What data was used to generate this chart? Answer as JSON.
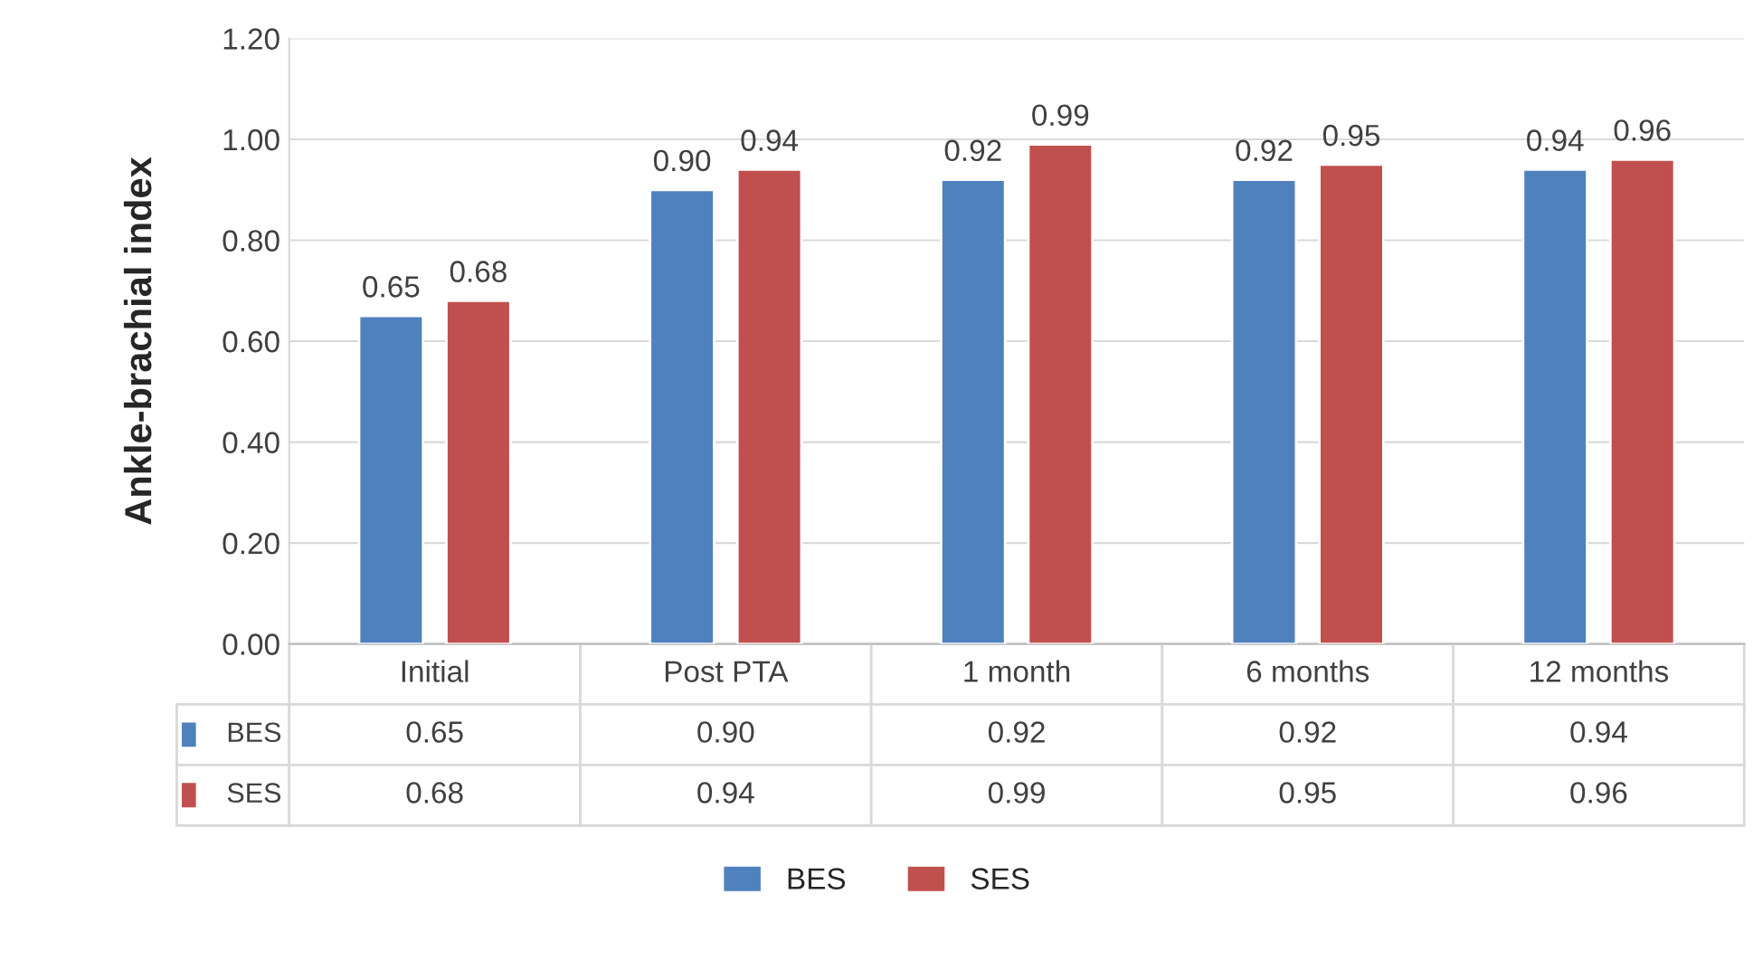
{
  "chart_data": {
    "type": "bar",
    "ylabel": "Ankle-brachial index",
    "categories": [
      "Initial",
      "Post PTA",
      "1 month",
      "6 months",
      "12 months"
    ],
    "series": [
      {
        "name": "BES",
        "color": "#4f81bd",
        "values": [
          0.65,
          0.9,
          0.92,
          0.92,
          0.94
        ],
        "value_labels": [
          "0.65",
          "0.90",
          "0.92",
          "0.92",
          "0.94"
        ]
      },
      {
        "name": "SES",
        "color": "#c0504d",
        "values": [
          0.68,
          0.94,
          0.99,
          0.95,
          0.96
        ],
        "value_labels": [
          "0.68",
          "0.94",
          "0.99",
          "0.95",
          "0.96"
        ]
      }
    ],
    "ylim": [
      0,
      1.2
    ],
    "yticks": [
      {
        "value": 0,
        "label": "0.00"
      },
      {
        "value": 0.2,
        "label": "0.20"
      },
      {
        "value": 0.4,
        "label": "0.40"
      },
      {
        "value": 0.6,
        "label": "0.60"
      },
      {
        "value": 0.8,
        "label": "0.80"
      },
      {
        "value": 1.0,
        "label": "1.00"
      },
      {
        "value": 1.2,
        "label": "1.20"
      }
    ],
    "grid": "y",
    "legend": "bottom"
  }
}
